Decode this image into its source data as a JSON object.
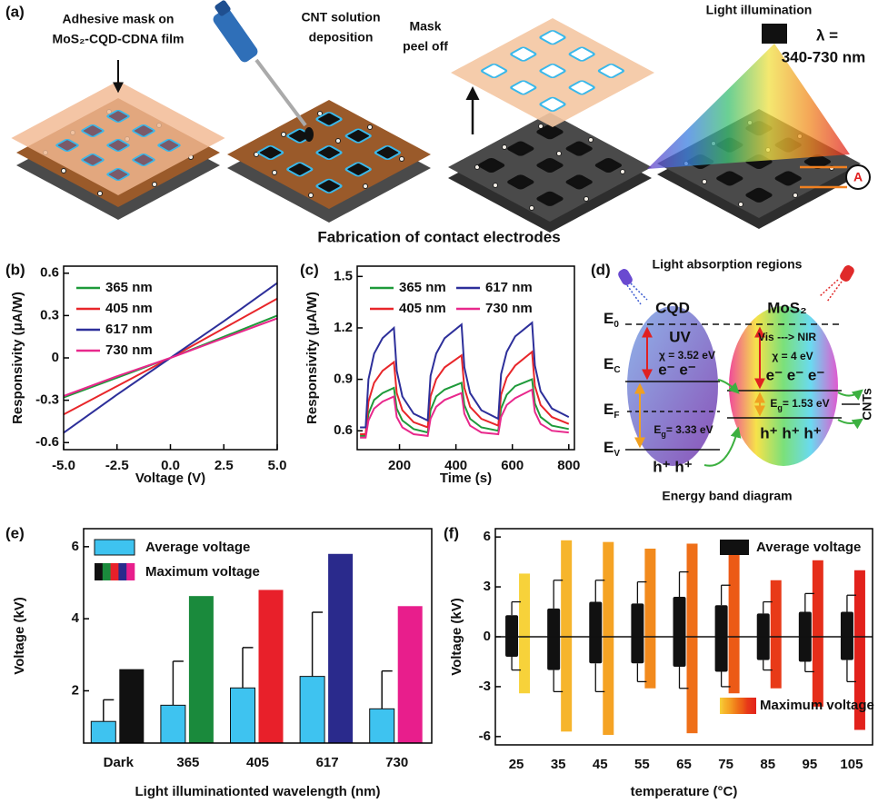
{
  "panel_a": {
    "label": "(a)",
    "steps": [
      {
        "lines": [
          "Adhesive mask on",
          "MoS₂-CQD-CDNA film"
        ]
      },
      {
        "lines": [
          "CNT solution",
          "deposition"
        ]
      },
      {
        "lines": [
          "Mask",
          "peel off"
        ]
      },
      {
        "lines": [
          "Light illumination"
        ]
      }
    ],
    "wavelength": [
      "λ =",
      "340-730 nm"
    ],
    "meter": "A",
    "caption": "Fabrication of contact electrodes"
  },
  "panel_d": {
    "label": "(d)",
    "title": "Light absorption regions",
    "materials": [
      {
        "name": "CQD",
        "band": "UV",
        "affinity": "χ = 3.52 eV",
        "electrons": "e⁻ e⁻",
        "gap": {
          "symbol": "E",
          "subscript": "g",
          "text": "= 3.33 eV"
        },
        "holes": "h⁺ h⁺"
      },
      {
        "name": "MoS₂",
        "band": "Vis ---> NIR",
        "affinity": "χ = 4 eV",
        "electrons": "e⁻ e⁻ e⁻",
        "gap": {
          "symbol": "E",
          "subscript": "g",
          "text": "= 1.53 eV"
        },
        "holes": "h⁺ h⁺ h⁺"
      }
    ],
    "levels": [
      {
        "symbol": "E",
        "subscript": "0"
      },
      {
        "symbol": "E",
        "subscript": "C"
      },
      {
        "symbol": "E",
        "subscript": "F"
      },
      {
        "symbol": "E",
        "subscript": "V"
      }
    ],
    "contact": "CNTs",
    "caption": "Energy band diagram"
  },
  "chart_data": [
    {
      "type": "line",
      "panel_label": "(b)",
      "x_label": "Voltage (V)",
      "y_label": "Responsivity (μA/W)",
      "x": [
        -5,
        -2.5,
        0,
        2.5,
        5
      ],
      "xlim": [
        -5,
        5
      ],
      "xticks": [
        {
          "value": -5,
          "label": "-5.0"
        },
        -2.5,
        {
          "value": 0,
          "label": "0.0"
        },
        2.5,
        {
          "value": 5,
          "label": "5.0"
        }
      ],
      "ylim": [
        -0.65,
        0.65
      ],
      "yticks": [
        -0.6,
        -0.3,
        0,
        0.3,
        0.6
      ],
      "legend": "upper left",
      "series": [
        {
          "name": "365 nm",
          "color": "#1e9a3a",
          "values": [
            -0.28,
            -0.14,
            0,
            0.15,
            0.3
          ]
        },
        {
          "name": "405 nm",
          "color": "#e8262a",
          "values": [
            -0.4,
            -0.2,
            0,
            0.21,
            0.42
          ]
        },
        {
          "name": "617 nm",
          "color": "#2d2f9a",
          "values": [
            -0.53,
            -0.26,
            0,
            0.26,
            0.53
          ]
        },
        {
          "name": "730 nm",
          "color": "#e8288c",
          "values": [
            -0.27,
            -0.13,
            0,
            0.14,
            0.28
          ]
        }
      ]
    },
    {
      "type": "line",
      "panel_label": "(c)",
      "x_label": "Time (s)",
      "y_label": "Responsivity (μA/W)",
      "x": [
        60,
        80,
        90,
        110,
        140,
        180,
        190,
        210,
        250,
        300,
        310,
        330,
        360,
        420,
        430,
        450,
        490,
        550,
        560,
        580,
        610,
        670,
        680,
        700,
        740,
        800
      ],
      "xlim": [
        50,
        820
      ],
      "xticks": [
        200,
        400,
        600,
        800
      ],
      "ylim": [
        0.49,
        1.56
      ],
      "yticks": [
        0.6,
        0.9,
        1.2,
        1.5
      ],
      "legend": "upper left",
      "series": [
        {
          "name": "365 nm",
          "color": "#1e9a3a",
          "values": [
            0.57,
            0.57,
            0.7,
            0.78,
            0.82,
            0.85,
            0.73,
            0.66,
            0.61,
            0.59,
            0.72,
            0.8,
            0.84,
            0.88,
            0.75,
            0.67,
            0.62,
            0.6,
            0.73,
            0.81,
            0.86,
            0.9,
            0.76,
            0.68,
            0.63,
            0.61
          ]
        },
        {
          "name": "405 nm",
          "color": "#e8262a",
          "values": [
            0.58,
            0.58,
            0.77,
            0.88,
            0.95,
            1.0,
            0.82,
            0.72,
            0.65,
            0.62,
            0.8,
            0.9,
            0.97,
            1.04,
            0.85,
            0.74,
            0.67,
            0.63,
            0.81,
            0.91,
            0.98,
            1.06,
            0.86,
            0.75,
            0.68,
            0.64
          ]
        },
        {
          "name": "617 nm",
          "color": "#2d2f9a",
          "values": [
            0.62,
            0.62,
            0.9,
            1.05,
            1.14,
            1.2,
            0.95,
            0.8,
            0.7,
            0.66,
            0.92,
            1.05,
            1.14,
            1.22,
            0.97,
            0.82,
            0.72,
            0.67,
            0.93,
            1.06,
            1.15,
            1.23,
            0.98,
            0.83,
            0.73,
            0.68
          ]
        },
        {
          "name": "730 nm",
          "color": "#e8288c",
          "values": [
            0.56,
            0.56,
            0.66,
            0.73,
            0.77,
            0.8,
            0.68,
            0.62,
            0.58,
            0.57,
            0.67,
            0.74,
            0.78,
            0.82,
            0.7,
            0.63,
            0.59,
            0.58,
            0.68,
            0.75,
            0.79,
            0.84,
            0.71,
            0.64,
            0.6,
            0.59
          ]
        }
      ]
    },
    {
      "type": "grouped_bar",
      "panel_label": "(e)",
      "x_label": "Light illuminationted wavelength (nm)",
      "y_label": "Voltage (kV)",
      "categories": [
        "Dark",
        "365",
        "405",
        "617",
        "730"
      ],
      "ylim": [
        0.55,
        6.5
      ],
      "yticks": [
        2,
        4,
        6
      ],
      "legend": "upper left",
      "series": [
        {
          "name": "Average voltage",
          "color": "#3ec3f0",
          "values": [
            1.15,
            1.6,
            2.08,
            2.4,
            1.5
          ],
          "errors": [
            0.6,
            1.22,
            1.12,
            1.78,
            1.05
          ]
        },
        {
          "name": "Maximum voltage",
          "colors": [
            "#111111",
            "#1a8a3c",
            "#e8202a",
            "#2a2a8c",
            "#e81e8c"
          ],
          "values": [
            2.6,
            4.63,
            4.8,
            5.8,
            4.35
          ]
        }
      ]
    },
    {
      "type": "floating_bar",
      "panel_label": "(f)",
      "x_label": "temperature (°C)",
      "y_label": "Voltage (kV)",
      "categories": [
        "25",
        "35",
        "45",
        "55",
        "65",
        "75",
        "85",
        "95",
        "105"
      ],
      "ylim": [
        -6.5,
        6.5
      ],
      "yticks": [
        -6,
        -3,
        0,
        3,
        6
      ],
      "zero_line": true,
      "series": [
        {
          "name": "Average voltage",
          "color": "#111111",
          "low": [
            -1.2,
            -2.0,
            -1.6,
            -1.6,
            -1.8,
            -2.1,
            -1.4,
            -1.5,
            -1.4
          ],
          "high": [
            1.3,
            1.7,
            2.1,
            2.0,
            2.4,
            1.9,
            1.4,
            1.5,
            1.5
          ],
          "low_errors": [
            0.8,
            1.3,
            1.7,
            1.1,
            1.3,
            0.9,
            0.6,
            0.6,
            1.3
          ],
          "high_errors": [
            0.8,
            1.7,
            1.3,
            1.3,
            1.5,
            1.2,
            0.7,
            1.1,
            1.0
          ]
        },
        {
          "name": "Maximum voltage",
          "colors": [
            "#f7d23a",
            "#f6b52c",
            "#f5a324",
            "#f28a1d",
            "#ef6f18",
            "#ec5a16",
            "#e83a18",
            "#e52e1a",
            "#e2221c"
          ],
          "low": [
            -3.4,
            -5.7,
            -5.9,
            -3.1,
            -5.8,
            -3.4,
            -3.1,
            -4.2,
            -5.6
          ],
          "high": [
            3.8,
            5.8,
            5.7,
            5.3,
            5.6,
            5.3,
            3.4,
            4.6,
            4.0
          ]
        }
      ]
    }
  ]
}
